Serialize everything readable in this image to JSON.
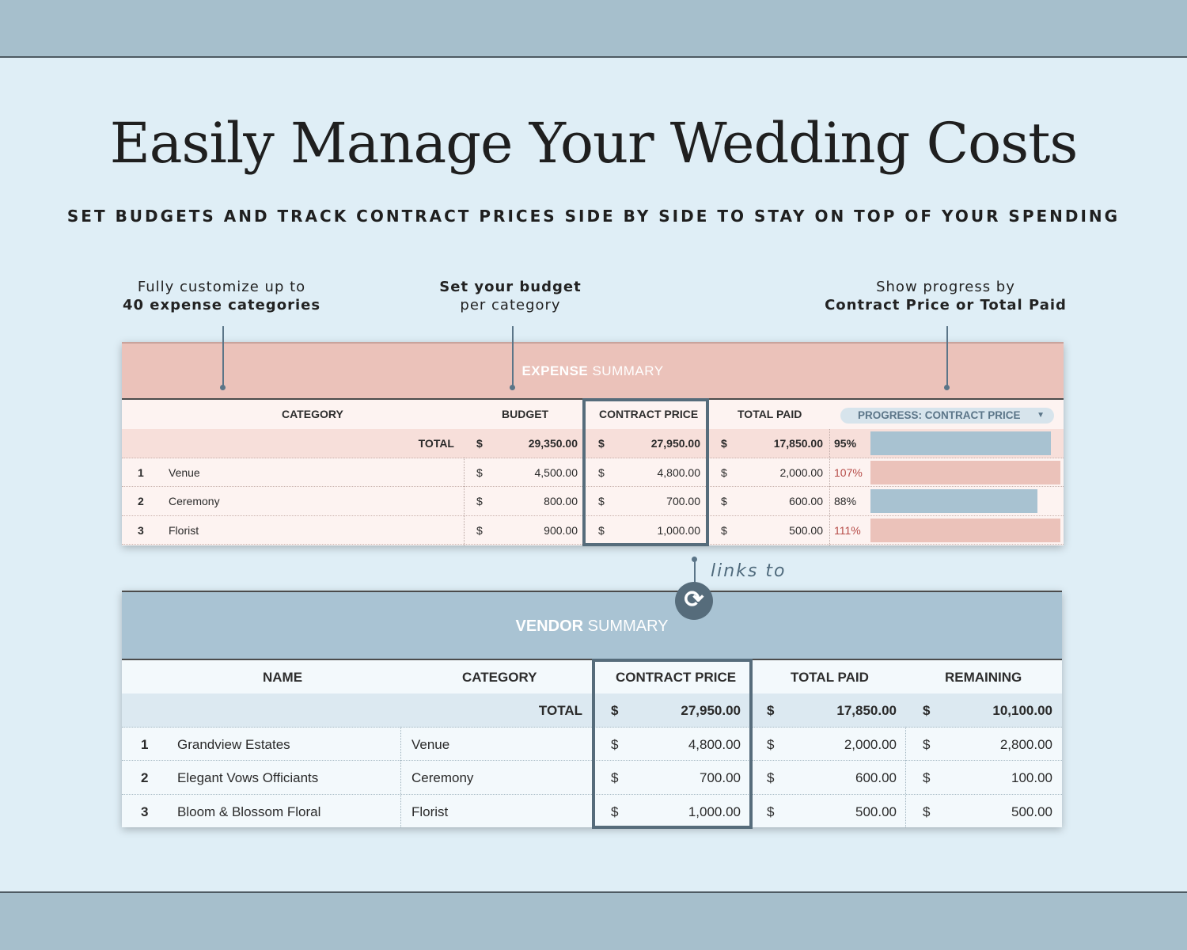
{
  "header": {
    "title": "Easily Manage Your Wedding Costs",
    "subtitle": "SET BUDGETS AND TRACK CONTRACT PRICES SIDE BY SIDE TO STAY ON TOP OF YOUR SPENDING"
  },
  "callouts": {
    "left": {
      "line1": "Fully customize up to",
      "line2": "40 expense categories"
    },
    "middle": {
      "line1": "Set your budget",
      "line2": "per category"
    },
    "right": {
      "line1": "Show progress by",
      "line2": "Contract Price or Total Paid"
    }
  },
  "expense_summary": {
    "title_bold": "EXPENSE",
    "title_thin": " SUMMARY",
    "columns": {
      "category": "CATEGORY",
      "budget": "BUDGET",
      "contract_price": "CONTRACT PRICE",
      "total_paid": "TOTAL PAID"
    },
    "progress_dropdown": "PROGRESS: CONTRACT PRICE",
    "total": {
      "label": "TOTAL",
      "currency": "$",
      "budget": "29,350.00",
      "contract_price": "27,950.00",
      "total_paid": "17,850.00",
      "progress_pct": "95%",
      "progress": 0.95
    },
    "rows": [
      {
        "num": "1",
        "category": "Venue",
        "currency": "$",
        "budget": "4,500.00",
        "contract_price": "4,800.00",
        "total_paid": "2,000.00",
        "progress_pct": "107%",
        "progress": 1.07,
        "over": true
      },
      {
        "num": "2",
        "category": "Ceremony",
        "currency": "$",
        "budget": "800.00",
        "contract_price": "700.00",
        "total_paid": "600.00",
        "progress_pct": "88%",
        "progress": 0.88,
        "over": false
      },
      {
        "num": "3",
        "category": "Florist",
        "currency": "$",
        "budget": "900.00",
        "contract_price": "1,000.00",
        "total_paid": "500.00",
        "progress_pct": "111%",
        "progress": 1.11,
        "over": true
      }
    ]
  },
  "link_label": "links to",
  "sync_icon": "sync-icon",
  "vendor_summary": {
    "title_bold": "VENDOR",
    "title_thin": " SUMMARY",
    "columns": {
      "name": "NAME",
      "category": "CATEGORY",
      "contract_price": "CONTRACT PRICE",
      "total_paid": "TOTAL PAID",
      "remaining": "REMAINING"
    },
    "total": {
      "label": "TOTAL",
      "currency": "$",
      "contract_price": "27,950.00",
      "total_paid": "17,850.00",
      "remaining": "10,100.00"
    },
    "rows": [
      {
        "num": "1",
        "name": "Grandview Estates",
        "category": "Venue",
        "currency": "$",
        "contract_price": "4,800.00",
        "total_paid": "2,000.00",
        "remaining": "2,800.00"
      },
      {
        "num": "2",
        "name": "Elegant Vows Officiants",
        "category": "Ceremony",
        "currency": "$",
        "contract_price": "700.00",
        "total_paid": "600.00",
        "remaining": "100.00"
      },
      {
        "num": "3",
        "name": "Bloom & Blossom Floral",
        "category": "Florist",
        "currency": "$",
        "contract_price": "1,000.00",
        "total_paid": "500.00",
        "remaining": "500.00"
      }
    ]
  },
  "colors": {
    "accent_slate": "#566c7b",
    "blush": "#ebc2ba",
    "powder_blue": "#a9c3d3",
    "over_budget": "#b64b47"
  }
}
